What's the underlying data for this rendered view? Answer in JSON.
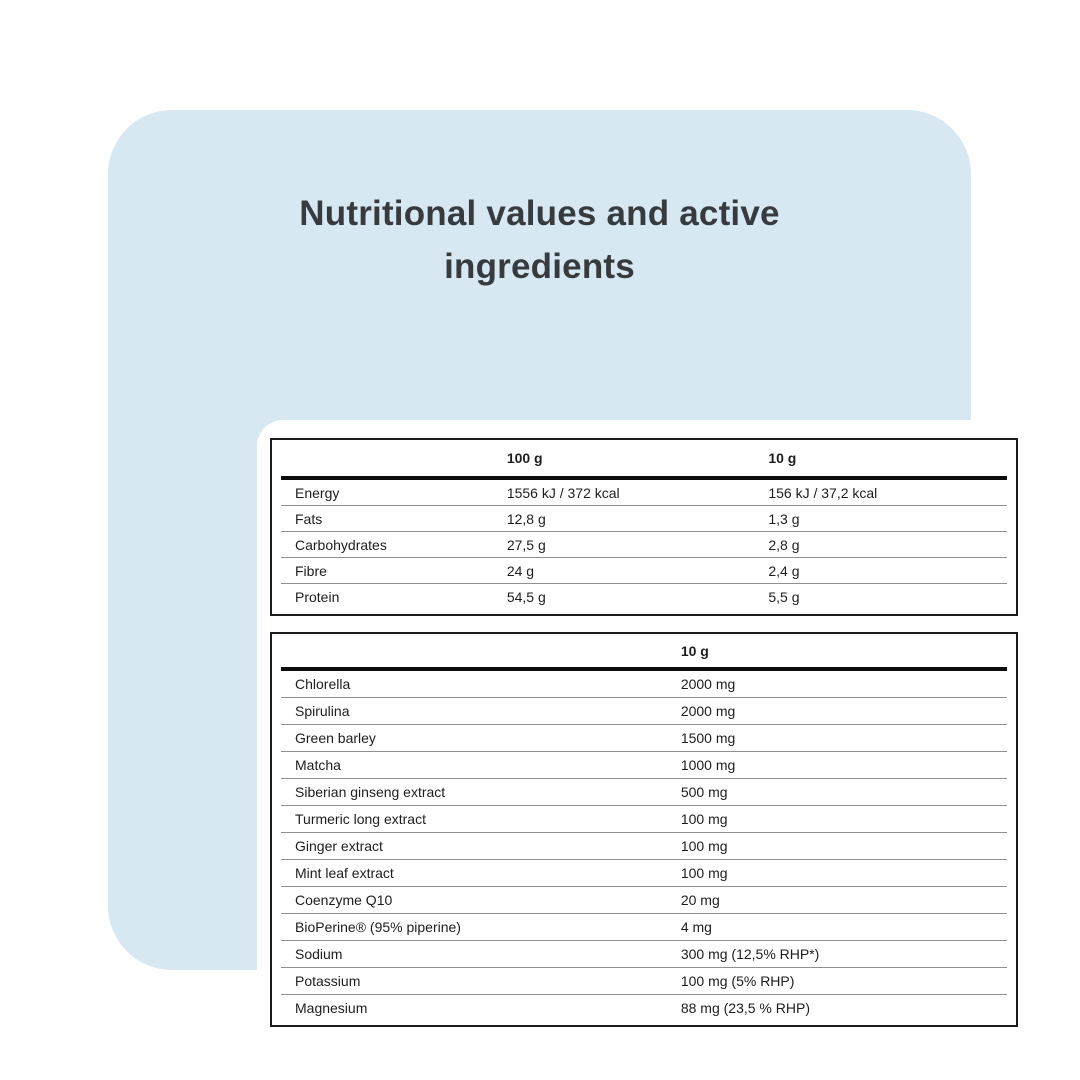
{
  "title": "Nutritional values and active ingredients",
  "colors": {
    "page_background": "#ffffff",
    "panel_background": "#d8e8f2",
    "card_background": "#ffffff",
    "title_text": "#363b40",
    "table_text": "#1d1d1f",
    "table_border": "#1c1c1c",
    "thick_rule": "#0c0c0c",
    "row_divider": "#8f8f8f"
  },
  "nutrition_table": {
    "columns": [
      "",
      "100 g",
      "10 g"
    ],
    "rows": [
      [
        "Energy",
        "1556 kJ / 372 kcal",
        "156 kJ / 37,2 kcal"
      ],
      [
        "Fats",
        "12,8 g",
        "1,3 g"
      ],
      [
        "Carbohydrates",
        "27,5 g",
        "2,8 g"
      ],
      [
        "Fibre",
        "24 g",
        "2,4 g"
      ],
      [
        "Protein",
        "54,5 g",
        "5,5 g"
      ]
    ]
  },
  "ingredients_table": {
    "columns": [
      "",
      "10 g"
    ],
    "rows": [
      [
        "Chlorella",
        "2000 mg"
      ],
      [
        "Spirulina",
        "2000 mg"
      ],
      [
        "Green barley",
        "1500 mg"
      ],
      [
        "Matcha",
        "1000 mg"
      ],
      [
        "Siberian ginseng extract",
        "500 mg"
      ],
      [
        "Turmeric long extract",
        "100 mg"
      ],
      [
        "Ginger extract",
        "100 mg"
      ],
      [
        "Mint leaf extract",
        "100 mg"
      ],
      [
        "Coenzyme Q10",
        "20 mg"
      ],
      [
        "BioPerine® (95% piperine)",
        "4 mg"
      ],
      [
        "Sodium",
        "300 mg (12,5% RHP*)"
      ],
      [
        "Potassium",
        "100 mg (5% RHP)"
      ],
      [
        "Magnesium",
        "88 mg (23,5 % RHP)"
      ]
    ]
  }
}
